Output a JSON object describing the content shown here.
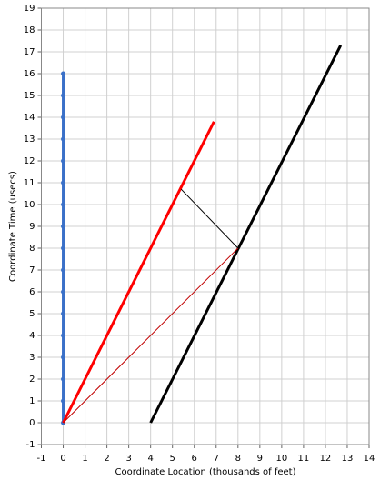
{
  "chart_data": {
    "type": "line",
    "x_label": "Coordinate Location (thousands of feet)",
    "y_label": "Coordinate Time (usecs)",
    "xlim": [
      -1,
      14
    ],
    "ylim": [
      -1,
      19
    ],
    "xticks": [
      -1,
      0,
      1,
      2,
      3,
      4,
      5,
      6,
      7,
      8,
      9,
      10,
      11,
      12,
      13,
      14
    ],
    "yticks": [
      -1,
      0,
      1,
      2,
      3,
      4,
      5,
      6,
      7,
      8,
      9,
      10,
      11,
      12,
      13,
      14,
      15,
      16,
      17,
      18,
      19
    ],
    "grid": true,
    "series": [
      {
        "color": "#3a70c8",
        "line_width": 3,
        "markers": true,
        "x": [
          0,
          0,
          0,
          0,
          0,
          0,
          0,
          0,
          0,
          0,
          0,
          0,
          0,
          0,
          0,
          0,
          0
        ],
        "values": [
          0,
          1,
          2,
          3,
          4,
          5,
          6,
          7,
          8,
          9,
          10,
          11,
          12,
          13,
          14,
          15,
          16
        ]
      },
      {
        "color": "#ff0000",
        "line_width": 3,
        "markers": false,
        "x": [
          0,
          6.9
        ],
        "values": [
          0,
          13.8
        ]
      },
      {
        "color": "#000000",
        "line_width": 3,
        "markers": false,
        "x": [
          4,
          12.7
        ],
        "values": [
          0,
          17.3
        ]
      },
      {
        "color": "#000000",
        "line_width": 1,
        "markers": false,
        "x": [
          5.4,
          8
        ],
        "values": [
          10.7,
          8
        ]
      },
      {
        "color": "#c00000",
        "line_width": 1,
        "markers": false,
        "x": [
          0,
          8
        ],
        "values": [
          0,
          8
        ]
      }
    ]
  }
}
